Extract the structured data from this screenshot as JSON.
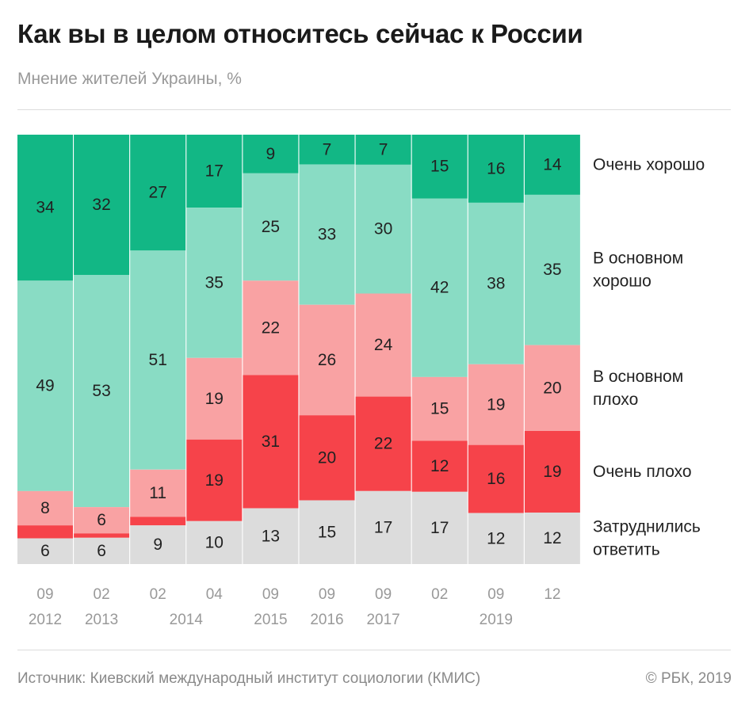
{
  "header": {
    "title": "Как вы в целом относитесь сейчас к России",
    "subtitle": "Мнение жителей Украины, %"
  },
  "footer": {
    "source": "Источник: Киевский международный институт социологии (КМИС)",
    "copyright": "© РБК, 2019"
  },
  "chart_data": {
    "type": "bar",
    "stacked": true,
    "normalized_percent": true,
    "categories": [
      {
        "month": "09",
        "year": "2012"
      },
      {
        "month": "02",
        "year": "2013"
      },
      {
        "month": "02",
        "year": ""
      },
      {
        "month": "04",
        "year": ""
      },
      {
        "month": "09",
        "year": "2015"
      },
      {
        "month": "09",
        "year": "2016"
      },
      {
        "month": "09",
        "year": "2017"
      },
      {
        "month": "02",
        "year": ""
      },
      {
        "month": "09",
        "year": "2019"
      },
      {
        "month": "12",
        "year": ""
      }
    ],
    "shared_year_labels": [
      {
        "label": "2014",
        "spans": [
          2,
          3
        ]
      },
      {
        "label": "2019",
        "spans": [
          7,
          9
        ]
      }
    ],
    "series": [
      {
        "name": "Очень хорошо",
        "label_lines": [
          "Очень хорошо"
        ],
        "color": "#12b785",
        "values": [
          34,
          32,
          27,
          17,
          9,
          7,
          7,
          15,
          16,
          14
        ]
      },
      {
        "name": "В основном хорошо",
        "label_lines": [
          "В основном",
          "хорошо"
        ],
        "color": "#89dcc4",
        "values": [
          49,
          53,
          51,
          35,
          25,
          33,
          30,
          42,
          38,
          35
        ]
      },
      {
        "name": "В основном плохо",
        "label_lines": [
          "В основном",
          "плохо"
        ],
        "color": "#f9a2a3",
        "values": [
          8,
          6,
          11,
          19,
          22,
          26,
          24,
          15,
          19,
          20
        ]
      },
      {
        "name": "Очень плохо",
        "label_lines": [
          "Очень плохо"
        ],
        "color": "#f6434a",
        "values": [
          3,
          1,
          2,
          19,
          31,
          20,
          22,
          12,
          16,
          19
        ]
      },
      {
        "name": "Затруднились ответить",
        "label_lines": [
          "Затруднились",
          "ответить"
        ],
        "color": "#dcdcdc",
        "values": [
          6,
          6,
          9,
          10,
          13,
          15,
          17,
          17,
          12,
          12
        ]
      }
    ],
    "visible_value_labels": [
      [
        true,
        true,
        true,
        true,
        true,
        true,
        true,
        true,
        true,
        true
      ],
      [
        true,
        true,
        true,
        true,
        true,
        true,
        true,
        true,
        true,
        true
      ],
      [
        true,
        true,
        true,
        true,
        true,
        true,
        true,
        true,
        true,
        true
      ],
      [
        false,
        false,
        false,
        true,
        true,
        true,
        true,
        true,
        true,
        true
      ],
      [
        true,
        true,
        true,
        true,
        true,
        true,
        true,
        true,
        true,
        true
      ]
    ],
    "legend_position": "right",
    "grid": false
  }
}
